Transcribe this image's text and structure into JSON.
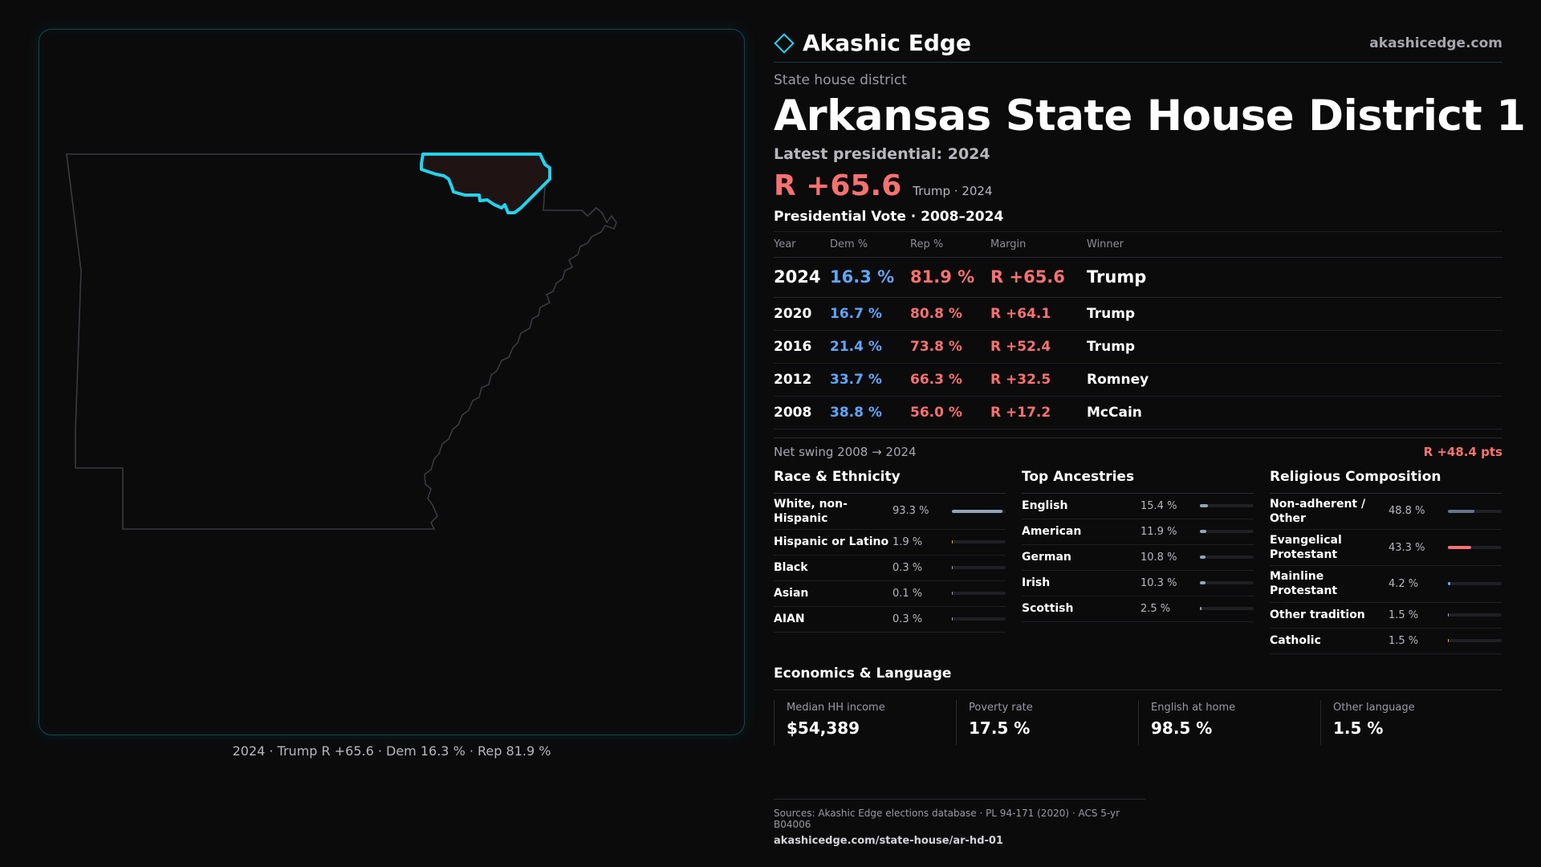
{
  "brand": {
    "name": "Akashic Edge",
    "site": "akashicedge.com"
  },
  "header": {
    "eyebrow": "State house district",
    "title": "Arkansas State House District 1",
    "latest_label": "Latest presidential: 2024",
    "big_margin": "R +65.6",
    "big_sub": "Trump · 2024"
  },
  "votes": {
    "heading": "Presidential Vote · 2008–2024",
    "columns": {
      "year": "Year",
      "dem": "Dem %",
      "rep": "Rep %",
      "margin": "Margin",
      "winner": "Winner"
    },
    "rows": [
      {
        "year": "2024",
        "dem": "16.3 %",
        "rep": "81.9 %",
        "margin": "R +65.6",
        "winner": "Trump"
      },
      {
        "year": "2020",
        "dem": "16.7 %",
        "rep": "80.8 %",
        "margin": "R +64.1",
        "winner": "Trump"
      },
      {
        "year": "2016",
        "dem": "21.4 %",
        "rep": "73.8 %",
        "margin": "R +52.4",
        "winner": "Trump"
      },
      {
        "year": "2012",
        "dem": "33.7 %",
        "rep": "66.3 %",
        "margin": "R +32.5",
        "winner": "Romney"
      },
      {
        "year": "2008",
        "dem": "38.8 %",
        "rep": "56.0 %",
        "margin": "R +17.2",
        "winner": "McCain"
      }
    ],
    "swing_label": "Net swing 2008 → 2024",
    "swing_value": "R +48.4 pts"
  },
  "race": {
    "title": "Race & Ethnicity",
    "items": [
      {
        "label": "White, non-Hispanic",
        "value": "93.3 %",
        "share": 0.933,
        "color": "#94a3b8"
      },
      {
        "label": "Hispanic or Latino",
        "value": "1.9 %",
        "share": 0.019,
        "color": "#eab308"
      },
      {
        "label": "Black",
        "value": "0.3 %",
        "share": 0.003,
        "color": "#94a3b8"
      },
      {
        "label": "Asian",
        "value": "0.1 %",
        "share": 0.001,
        "color": "#94a3b8"
      },
      {
        "label": "AIAN",
        "value": "0.3 %",
        "share": 0.003,
        "color": "#94a3b8"
      }
    ]
  },
  "ancestry": {
    "title": "Top Ancestries",
    "items": [
      {
        "label": "English",
        "value": "15.4 %",
        "share": 0.154,
        "color": "#94a3b8"
      },
      {
        "label": "American",
        "value": "11.9 %",
        "share": 0.119,
        "color": "#94a3b8"
      },
      {
        "label": "German",
        "value": "10.8 %",
        "share": 0.108,
        "color": "#94a3b8"
      },
      {
        "label": "Irish",
        "value": "10.3 %",
        "share": 0.103,
        "color": "#94a3b8"
      },
      {
        "label": "Scottish",
        "value": "2.5 %",
        "share": 0.025,
        "color": "#94a3b8"
      }
    ]
  },
  "religion": {
    "title": "Religious Composition",
    "items": [
      {
        "label": "Non-adherent / Other",
        "value": "48.8 %",
        "share": 0.488,
        "color": "#64748b"
      },
      {
        "label": "Evangelical Protestant",
        "value": "43.3 %",
        "share": 0.433,
        "color": "#f87171"
      },
      {
        "label": "Mainline Protestant",
        "value": "4.2 %",
        "share": 0.042,
        "color": "#60a5fa"
      },
      {
        "label": "Other tradition",
        "value": "1.5 %",
        "share": 0.015,
        "color": "#94a3b8"
      },
      {
        "label": "Catholic",
        "value": "1.5 %",
        "share": 0.015,
        "color": "#eab308"
      }
    ]
  },
  "economics": {
    "title": "Economics & Language",
    "cells": [
      {
        "label": "Median HH income",
        "value": "$54,389"
      },
      {
        "label": "Poverty rate",
        "value": "17.5 %"
      },
      {
        "label": "English at home",
        "value": "98.5 %"
      },
      {
        "label": "Other language",
        "value": "1.5 %"
      }
    ]
  },
  "map": {
    "caption": "2024 · Trump R +65.6 · Dem 16.3 % · Rep 81.9 %",
    "highlight_color": "#22d3ee"
  },
  "sources": {
    "line": "Sources: Akashic Edge elections database · PL 94-171 (2020) · ACS 5-yr B04006",
    "url": "akashicedge.com/state-house/ar-hd-01"
  }
}
